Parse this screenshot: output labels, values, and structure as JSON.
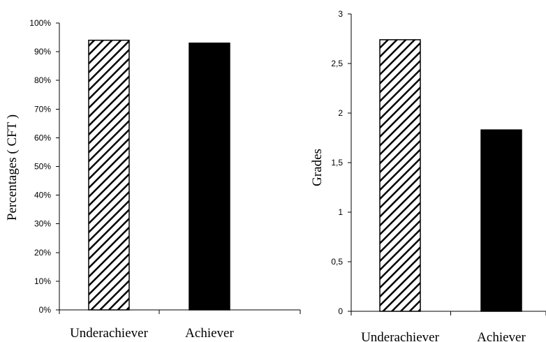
{
  "chart_data": [
    {
      "type": "bar",
      "categories": [
        "Underachiever",
        "Achiever"
      ],
      "values": [
        94,
        93
      ],
      "ylabel": "Percentages ( CFT )",
      "xlabel": "",
      "ylim": [
        0,
        100
      ],
      "ytick_labels": [
        "0%",
        "10%",
        "20%",
        "30%",
        "40%",
        "50%",
        "60%",
        "70%",
        "80%",
        "90%",
        "100%"
      ],
      "bar_fills": [
        "hatched",
        "solid"
      ],
      "colors": {
        "bar": "#000000",
        "hatch": "#000000",
        "background": "#ffffff"
      },
      "grid": false,
      "legend": "none"
    },
    {
      "type": "bar",
      "categories": [
        "Underachiever",
        "Achiever"
      ],
      "values": [
        2.74,
        1.83
      ],
      "ylabel": "Grades",
      "xlabel": "",
      "ylim": [
        0,
        3
      ],
      "ytick_labels": [
        "0",
        "0,5",
        "1",
        "1,5",
        "2",
        "2,5",
        "3"
      ],
      "bar_fills": [
        "hatched",
        "solid"
      ],
      "colors": {
        "bar": "#000000",
        "hatch": "#000000",
        "background": "#ffffff"
      },
      "grid": false,
      "legend": "none"
    }
  ]
}
